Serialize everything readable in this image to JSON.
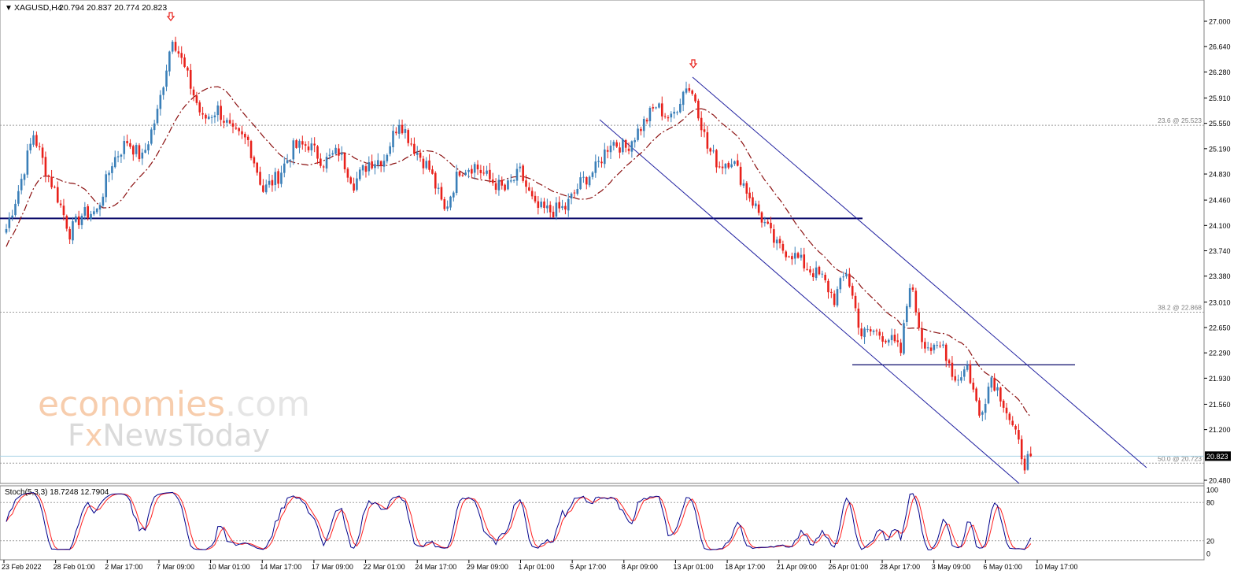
{
  "header": {
    "symbol": "XAGUSD,H4",
    "ohlc": "20.794 20.837 20.774 20.823",
    "menu_glyph": "▼"
  },
  "watermark": {
    "line1_a": "economies",
    "line1_b": ".com",
    "line2_a": "F",
    "line2_x": "x",
    "line2_b": "NewsToday"
  },
  "price_axis": {
    "ticks": [
      "27.000",
      "26.640",
      "26.280",
      "25.910",
      "25.550",
      "25.190",
      "24.830",
      "24.460",
      "24.100",
      "23.740",
      "23.380",
      "23.010",
      "22.650",
      "22.290",
      "21.930",
      "21.560",
      "21.200",
      "20.480"
    ],
    "current_price": "20.823"
  },
  "fib_levels": [
    {
      "label": "23.6 @ 25.523",
      "price": 25.523
    },
    {
      "label": "38.2 @ 22.868",
      "price": 22.868
    },
    {
      "label": "50.0 @ 20.723",
      "price": 20.723
    }
  ],
  "time_axis": {
    "labels": [
      "23 Feb 2022",
      "28 Feb 01:00",
      "2 Mar 17:00",
      "7 Mar 09:00",
      "10 Mar 01:00",
      "14 Mar 17:00",
      "17 Mar 09:00",
      "22 Mar 01:00",
      "24 Mar 17:00",
      "29 Mar 09:00",
      "1 Apr 01:00",
      "5 Apr 17:00",
      "8 Apr 09:00",
      "13 Apr 01:00",
      "18 Apr 17:00",
      "21 Apr 09:00",
      "26 Apr 01:00",
      "28 Apr 17:00",
      "3 May 09:00",
      "6 May 01:00",
      "10 May 17:00"
    ]
  },
  "stoch_panel": {
    "label": "Stoch(5,3,3) 18.7248 12.7904",
    "ticks": [
      "100",
      "80",
      "20",
      "0"
    ]
  },
  "colors": {
    "bull": "#3a7fb8",
    "bear": "#e8211b",
    "ma": "#8b1010",
    "channel": "#2020a0",
    "support": "#0a0a6a",
    "stoch_main": "#00008b",
    "stoch_signal": "#ff2020",
    "arrow": "#e8211b"
  },
  "chart_data": {
    "type": "candlestick",
    "symbol": "XAGUSD",
    "timeframe": "H4",
    "ylim": [
      20.4,
      27.12
    ],
    "key_prices": [
      24.2,
      22.12
    ],
    "anchors": [
      [
        0,
        24.05
      ],
      [
        4,
        24.6
      ],
      [
        9,
        25.4
      ],
      [
        13,
        24.9
      ],
      [
        17,
        24.5
      ],
      [
        21,
        24.0
      ],
      [
        25,
        24.25
      ],
      [
        30,
        24.3
      ],
      [
        35,
        25.0
      ],
      [
        40,
        25.3
      ],
      [
        45,
        25.05
      ],
      [
        50,
        25.7
      ],
      [
        55,
        26.8
      ],
      [
        60,
        26.2
      ],
      [
        65,
        25.6
      ],
      [
        70,
        25.75
      ],
      [
        75,
        25.4
      ],
      [
        80,
        25.3
      ],
      [
        85,
        24.6
      ],
      [
        90,
        24.8
      ],
      [
        95,
        25.2
      ],
      [
        100,
        25.25
      ],
      [
        105,
        25.0
      ],
      [
        110,
        25.15
      ],
      [
        115,
        24.7
      ],
      [
        120,
        25.0
      ],
      [
        125,
        25.05
      ],
      [
        130,
        25.6
      ],
      [
        135,
        25.2
      ],
      [
        140,
        24.9
      ],
      [
        145,
        24.3
      ],
      [
        150,
        24.9
      ],
      [
        155,
        24.95
      ],
      [
        160,
        24.75
      ],
      [
        165,
        24.6
      ],
      [
        170,
        24.85
      ],
      [
        175,
        24.35
      ],
      [
        180,
        24.3
      ],
      [
        185,
        24.35
      ],
      [
        190,
        24.7
      ],
      [
        195,
        24.9
      ],
      [
        200,
        25.3
      ],
      [
        205,
        25.2
      ],
      [
        210,
        25.5
      ],
      [
        215,
        25.8
      ],
      [
        220,
        25.6
      ],
      [
        225,
        26.1
      ],
      [
        228,
        25.9
      ],
      [
        232,
        25.2
      ],
      [
        236,
        24.95
      ],
      [
        240,
        25.05
      ],
      [
        245,
        24.6
      ],
      [
        250,
        24.2
      ],
      [
        255,
        23.8
      ],
      [
        260,
        23.7
      ],
      [
        265,
        23.5
      ],
      [
        270,
        23.35
      ],
      [
        274,
        23.05
      ],
      [
        278,
        23.45
      ],
      [
        283,
        22.55
      ],
      [
        287,
        22.6
      ],
      [
        292,
        22.5
      ],
      [
        296,
        22.3
      ],
      [
        299,
        23.3
      ],
      [
        303,
        22.5
      ],
      [
        307,
        22.3
      ],
      [
        310,
        22.4
      ],
      [
        314,
        21.9
      ],
      [
        318,
        22.1
      ],
      [
        322,
        21.4
      ],
      [
        326,
        21.95
      ],
      [
        330,
        21.6
      ],
      [
        334,
        21.1
      ],
      [
        337,
        20.73
      ],
      [
        339,
        20.823
      ]
    ]
  }
}
